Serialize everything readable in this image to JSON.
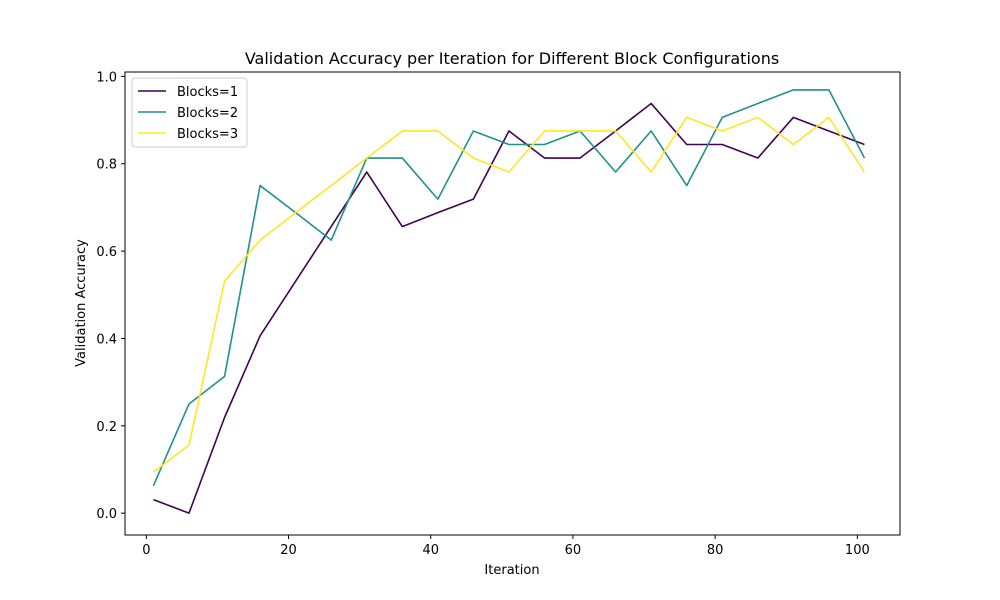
{
  "chart_data": {
    "type": "line",
    "title": "Validation Accuracy per Iteration for Different Block Configurations",
    "xlabel": "Iteration",
    "ylabel": "Validation Accuracy",
    "xlim": [
      -3,
      106
    ],
    "ylim": [
      -0.05,
      1.01
    ],
    "xticks": [
      0,
      20,
      40,
      60,
      80,
      100
    ],
    "yticks": [
      0.0,
      0.2,
      0.4,
      0.6,
      0.8,
      1.0
    ],
    "grid": false,
    "legend_position": "top-left",
    "x": [
      1,
      6,
      11,
      16,
      21,
      26,
      31,
      36,
      41,
      46,
      51,
      56,
      61,
      66,
      71,
      76,
      81,
      86,
      91,
      96,
      101
    ],
    "series": [
      {
        "name": "Blocks=1",
        "color": "#440154",
        "values": [
          0.031,
          0.0,
          0.219,
          0.406,
          0.531,
          0.656,
          0.781,
          0.656,
          0.688,
          0.719,
          0.875,
          0.813,
          0.813,
          0.875,
          0.938,
          0.844,
          0.844,
          0.813,
          0.906,
          0.875,
          0.844
        ]
      },
      {
        "name": "Blocks=2",
        "color": "#21918c",
        "values": [
          0.063,
          0.25,
          0.313,
          0.75,
          0.688,
          0.625,
          0.813,
          0.813,
          0.719,
          0.875,
          0.844,
          0.844,
          0.875,
          0.781,
          0.875,
          0.75,
          0.906,
          0.938,
          0.969,
          0.969,
          0.813
        ]
      },
      {
        "name": "Blocks=3",
        "color": "#fde725",
        "values": [
          0.094,
          0.156,
          0.531,
          0.625,
          0.688,
          0.75,
          0.813,
          0.875,
          0.875,
          0.813,
          0.781,
          0.875,
          0.875,
          0.875,
          0.781,
          0.906,
          0.875,
          0.906,
          0.844,
          0.906,
          0.781
        ]
      }
    ]
  }
}
